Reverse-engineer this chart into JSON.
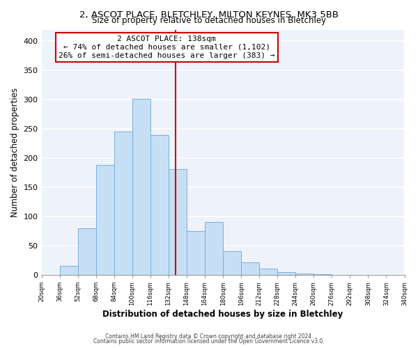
{
  "title1": "2, ASCOT PLACE, BLETCHLEY, MILTON KEYNES, MK3 5BB",
  "title2": "Size of property relative to detached houses in Bletchley",
  "xlabel": "Distribution of detached houses by size in Bletchley",
  "ylabel": "Number of detached properties",
  "bin_edges": [
    20,
    36,
    52,
    68,
    84,
    100,
    116,
    132,
    148,
    164,
    180,
    196,
    212,
    228,
    244,
    260,
    276,
    292,
    308,
    324,
    340
  ],
  "bar_heights": [
    0,
    15,
    80,
    188,
    245,
    301,
    239,
    181,
    75,
    90,
    41,
    22,
    11,
    5,
    2,
    1,
    0,
    0,
    0,
    0
  ],
  "bar_color": "#c6dff5",
  "bar_edge_color": "#7ab0d8",
  "property_size": 138,
  "vline_color": "#cc0000",
  "annotation_box_edge": "#cc0000",
  "annotation_title": "2 ASCOT PLACE: 138sqm",
  "annotation_line1": "← 74% of detached houses are smaller (1,102)",
  "annotation_line2": "26% of semi-detached houses are larger (383) →",
  "ylim": [
    0,
    420
  ],
  "xlim": [
    20,
    340
  ],
  "footer1": "Contains HM Land Registry data © Crown copyright and database right 2024.",
  "footer2": "Contains public sector information licensed under the Open Government Licence v3.0.",
  "tick_labels": [
    "20sqm",
    "36sqm",
    "52sqm",
    "68sqm",
    "84sqm",
    "100sqm",
    "116sqm",
    "132sqm",
    "148sqm",
    "164sqm",
    "180sqm",
    "196sqm",
    "212sqm",
    "228sqm",
    "244sqm",
    "260sqm",
    "276sqm",
    "292sqm",
    "308sqm",
    "324sqm",
    "340sqm"
  ],
  "yticks": [
    0,
    50,
    100,
    150,
    200,
    250,
    300,
    350,
    400
  ],
  "background_color": "#ffffff",
  "plot_bg_color": "#eef2fa",
  "grid_color": "#ffffff",
  "title1_fontsize": 9.5,
  "title2_fontsize": 8.5,
  "annotation_fontsize": 8.0
}
